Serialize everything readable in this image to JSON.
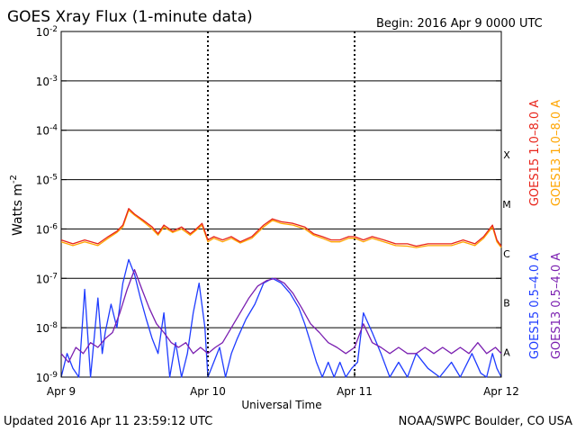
{
  "chart_data": {
    "type": "line",
    "title": "GOES Xray Flux (1-minute data)",
    "begin_text": "Begin:  2016 Apr 9 0000 UTC",
    "ylabel": "Watts m",
    "ylabel_exp": "-2",
    "xlabel": "Universal Time",
    "y_scale": "log",
    "ylim": [
      1e-09,
      0.01
    ],
    "y_ticks": [
      {
        "base": "10",
        "exp": "-2",
        "value": 0.01
      },
      {
        "base": "10",
        "exp": "-3",
        "value": 0.001
      },
      {
        "base": "10",
        "exp": "-4",
        "value": 0.0001
      },
      {
        "base": "10",
        "exp": "-5",
        "value": 1e-05
      },
      {
        "base": "10",
        "exp": "-6",
        "value": 1e-06
      },
      {
        "base": "10",
        "exp": "-7",
        "value": 1e-07
      },
      {
        "base": "10",
        "exp": "-8",
        "value": 1e-08
      },
      {
        "base": "10",
        "exp": "-9",
        "value": 1e-09
      }
    ],
    "x_ticks": [
      {
        "label": "Apr 9",
        "day": 0
      },
      {
        "label": "Apr 10",
        "day": 1
      },
      {
        "label": "Apr 11",
        "day": 2
      },
      {
        "label": "Apr 12",
        "day": 3
      }
    ],
    "flare_classes": [
      {
        "label": "X",
        "value": 0.0001
      },
      {
        "label": "M",
        "value": 1e-05
      },
      {
        "label": "C",
        "value": 1e-06
      },
      {
        "label": "B",
        "value": 1e-07
      },
      {
        "label": "A",
        "value": 1e-08
      }
    ],
    "legend": [
      {
        "label": "GOES15 1.0–8.0 A",
        "color": "#e8241a"
      },
      {
        "label": "GOES13 1.0–8.0 A",
        "color": "#ffa500"
      },
      {
        "label": "GOES15 0.5–4.0 A",
        "color": "#1f3cff"
      },
      {
        "label": "GOES13 0.5–4.0 A",
        "color": "#7a1fb0"
      }
    ],
    "series": [
      {
        "name": "GOES15 1.0–8.0 A",
        "color": "#e8241a",
        "x": [
          0,
          0.08,
          0.16,
          0.25,
          0.32,
          0.38,
          0.42,
          0.46,
          0.5,
          0.56,
          0.62,
          0.66,
          0.7,
          0.76,
          0.82,
          0.88,
          0.92,
          0.96,
          1.0,
          1.04,
          1.1,
          1.16,
          1.22,
          1.3,
          1.38,
          1.44,
          1.5,
          1.58,
          1.66,
          1.72,
          1.78,
          1.84,
          1.9,
          1.96,
          2.0,
          2.06,
          2.12,
          2.2,
          2.28,
          2.36,
          2.42,
          2.5,
          2.58,
          2.66,
          2.74,
          2.82,
          2.88,
          2.94,
          2.97,
          3.0
        ],
        "y": [
          6e-07,
          5e-07,
          6e-07,
          5e-07,
          7e-07,
          9e-07,
          1.2e-06,
          2.6e-06,
          2e-06,
          1.5e-06,
          1.1e-06,
          8e-07,
          1.2e-06,
          9e-07,
          1.1e-06,
          8e-07,
          1e-06,
          1.3e-06,
          6e-07,
          7e-07,
          6e-07,
          7e-07,
          5.5e-07,
          7e-07,
          1.2e-06,
          1.6e-06,
          1.4e-06,
          1.3e-06,
          1.1e-06,
          8e-07,
          7e-07,
          6e-07,
          6e-07,
          7e-07,
          7e-07,
          6e-07,
          7e-07,
          6e-07,
          5e-07,
          5e-07,
          4.5e-07,
          5e-07,
          5e-07,
          5e-07,
          6e-07,
          5e-07,
          7e-07,
          1.2e-06,
          6e-07,
          4.5e-07
        ]
      },
      {
        "name": "GOES13 1.0–8.0 A",
        "color": "#ffa500",
        "x": [
          0,
          0.08,
          0.16,
          0.25,
          0.32,
          0.38,
          0.42,
          0.46,
          0.5,
          0.56,
          0.62,
          0.66,
          0.7,
          0.76,
          0.82,
          0.88,
          0.92,
          0.96,
          1.0,
          1.04,
          1.1,
          1.16,
          1.22,
          1.3,
          1.38,
          1.44,
          1.5,
          1.58,
          1.66,
          1.72,
          1.78,
          1.84,
          1.9,
          1.96,
          2.0,
          2.06,
          2.12,
          2.2,
          2.28,
          2.36,
          2.42,
          2.5,
          2.58,
          2.66,
          2.74,
          2.82,
          2.88,
          2.94,
          2.97,
          3.0
        ],
        "y": [
          5.5e-07,
          4.6e-07,
          5.5e-07,
          4.6e-07,
          6.5e-07,
          8.5e-07,
          1.1e-06,
          2.4e-06,
          1.9e-06,
          1.4e-06,
          1e-06,
          7.5e-07,
          1.1e-06,
          8.5e-07,
          1e-06,
          7.5e-07,
          9.5e-07,
          1.2e-06,
          5.5e-07,
          6.5e-07,
          5.5e-07,
          6.5e-07,
          5.2e-07,
          6.5e-07,
          1.1e-06,
          1.5e-06,
          1.3e-06,
          1.2e-06,
          1e-06,
          7.5e-07,
          6.5e-07,
          5.5e-07,
          5.5e-07,
          6.5e-07,
          6.5e-07,
          5.5e-07,
          6.5e-07,
          5.5e-07,
          4.6e-07,
          4.5e-07,
          4.2e-07,
          4.6e-07,
          4.6e-07,
          4.6e-07,
          5.5e-07,
          4.6e-07,
          6.5e-07,
          1.1e-06,
          5.5e-07,
          4.2e-07
        ]
      },
      {
        "name": "GOES15 0.5–4.0 A",
        "color": "#1f3cff",
        "x": [
          0,
          0.04,
          0.08,
          0.12,
          0.16,
          0.2,
          0.25,
          0.28,
          0.3,
          0.34,
          0.38,
          0.42,
          0.46,
          0.5,
          0.54,
          0.58,
          0.62,
          0.66,
          0.7,
          0.74,
          0.78,
          0.82,
          0.86,
          0.9,
          0.94,
          0.98,
          1.0,
          1.04,
          1.08,
          1.12,
          1.16,
          1.2,
          1.26,
          1.32,
          1.38,
          1.44,
          1.5,
          1.56,
          1.62,
          1.66,
          1.7,
          1.74,
          1.78,
          1.82,
          1.86,
          1.9,
          1.94,
          1.98,
          2.02,
          2.06,
          2.12,
          2.18,
          2.24,
          2.3,
          2.36,
          2.42,
          2.5,
          2.58,
          2.66,
          2.72,
          2.8,
          2.86,
          2.9,
          2.94,
          2.97,
          3.0
        ],
        "y": [
          1e-09,
          3e-09,
          1.5e-09,
          1e-09,
          6e-08,
          1e-09,
          4e-08,
          3e-09,
          8e-09,
          3e-08,
          1e-08,
          8e-08,
          2.4e-07,
          1.2e-07,
          4e-08,
          1.5e-08,
          6e-09,
          3e-09,
          2e-08,
          1e-09,
          5e-09,
          1e-09,
          3e-09,
          2e-08,
          8e-08,
          1e-08,
          1e-09,
          2e-09,
          4e-09,
          1e-09,
          3e-09,
          6e-09,
          1.5e-08,
          3e-08,
          8e-08,
          1e-07,
          8e-08,
          5e-08,
          2.5e-08,
          1.2e-08,
          5e-09,
          2e-09,
          1e-09,
          2e-09,
          1e-09,
          2e-09,
          1e-09,
          1.5e-09,
          2e-09,
          2e-08,
          8e-09,
          3e-09,
          1e-09,
          2e-09,
          1e-09,
          3e-09,
          1.5e-09,
          1e-09,
          2e-09,
          1e-09,
          3e-09,
          1.2e-09,
          1e-09,
          3e-09,
          1.5e-09,
          1e-09
        ]
      },
      {
        "name": "GOES13 0.5–4.0 A",
        "color": "#7a1fb0",
        "x": [
          0,
          0.05,
          0.1,
          0.15,
          0.2,
          0.25,
          0.3,
          0.35,
          0.4,
          0.45,
          0.5,
          0.55,
          0.6,
          0.65,
          0.7,
          0.75,
          0.8,
          0.85,
          0.9,
          0.95,
          1.0,
          1.05,
          1.1,
          1.16,
          1.22,
          1.28,
          1.34,
          1.4,
          1.46,
          1.52,
          1.58,
          1.64,
          1.7,
          1.76,
          1.82,
          1.88,
          1.94,
          2.0,
          2.06,
          2.12,
          2.18,
          2.24,
          2.3,
          2.36,
          2.42,
          2.48,
          2.54,
          2.6,
          2.66,
          2.72,
          2.78,
          2.84,
          2.9,
          2.96,
          3.0
        ],
        "y": [
          3e-09,
          2e-09,
          4e-09,
          3e-09,
          5e-09,
          4e-09,
          6e-09,
          8e-09,
          2e-08,
          6e-08,
          1.5e-07,
          6e-08,
          2.5e-08,
          1.2e-08,
          8e-09,
          5e-09,
          4e-09,
          5e-09,
          3e-09,
          4e-09,
          3e-09,
          4e-09,
          5e-09,
          1e-08,
          2e-08,
          4e-08,
          7e-08,
          9e-08,
          1e-07,
          8e-08,
          5e-08,
          2.5e-08,
          1.2e-08,
          8e-09,
          5e-09,
          4e-09,
          3e-09,
          4e-09,
          1.2e-08,
          5e-09,
          4e-09,
          3e-09,
          4e-09,
          3e-09,
          3e-09,
          4e-09,
          3e-09,
          4e-09,
          3e-09,
          4e-09,
          3e-09,
          5e-09,
          3e-09,
          4e-09,
          3e-09
        ]
      }
    ]
  },
  "footer": {
    "updated": "Updated 2016 Apr 11 23:59:12 UTC",
    "credit": "NOAA/SWPC Boulder, CO USA"
  }
}
